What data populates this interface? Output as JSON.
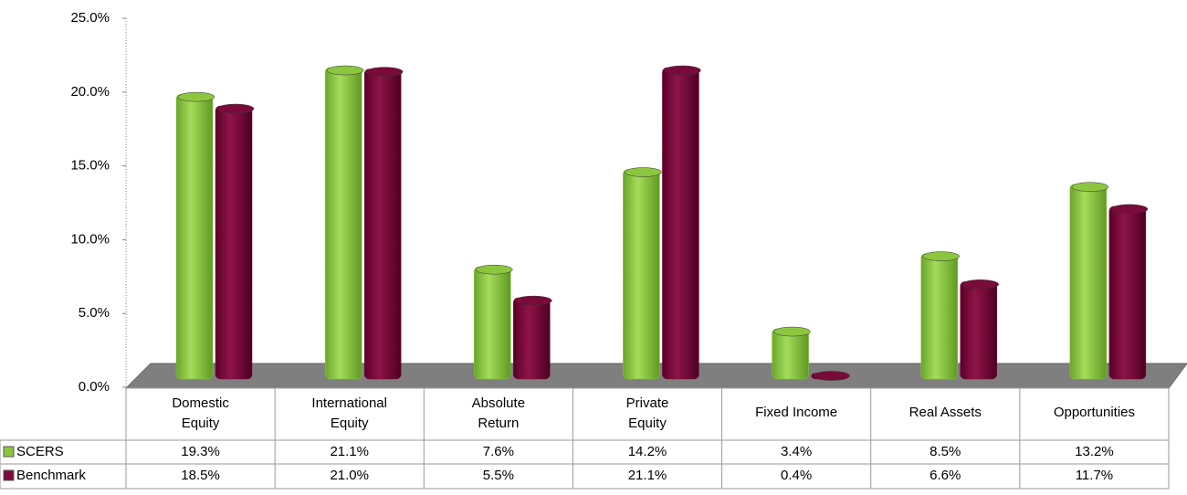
{
  "chart_data": {
    "type": "bar",
    "categories": [
      "Domestic Equity",
      "International Equity",
      "Absolute Return",
      "Private Equity",
      "Fixed Income",
      "Real Assets",
      "Opportunities"
    ],
    "series": [
      {
        "name": "SCERS",
        "color": "#8cc63f",
        "values": [
          19.3,
          21.1,
          7.6,
          14.2,
          3.4,
          8.5,
          13.2
        ],
        "value_labels": [
          "19.3%",
          "21.1%",
          "7.6%",
          "14.2%",
          "3.4%",
          "8.5%",
          "13.2%"
        ]
      },
      {
        "name": "Benchmark",
        "color": "#7a0a3a",
        "values": [
          18.5,
          21.0,
          5.5,
          21.1,
          0.4,
          6.6,
          11.7
        ],
        "value_labels": [
          "18.5%",
          "21.0%",
          "5.5%",
          "21.1%",
          "0.4%",
          "6.6%",
          "11.7%"
        ]
      }
    ],
    "ylim": [
      0,
      25
    ],
    "yticks": [
      {
        "value": 0,
        "label": "0.0%"
      },
      {
        "value": 5,
        "label": "5.0%"
      },
      {
        "value": 10,
        "label": "10.0%"
      },
      {
        "value": 15,
        "label": "15.0%"
      },
      {
        "value": 20,
        "label": "20.0%"
      },
      {
        "value": 25,
        "label": "25.0%"
      }
    ]
  }
}
